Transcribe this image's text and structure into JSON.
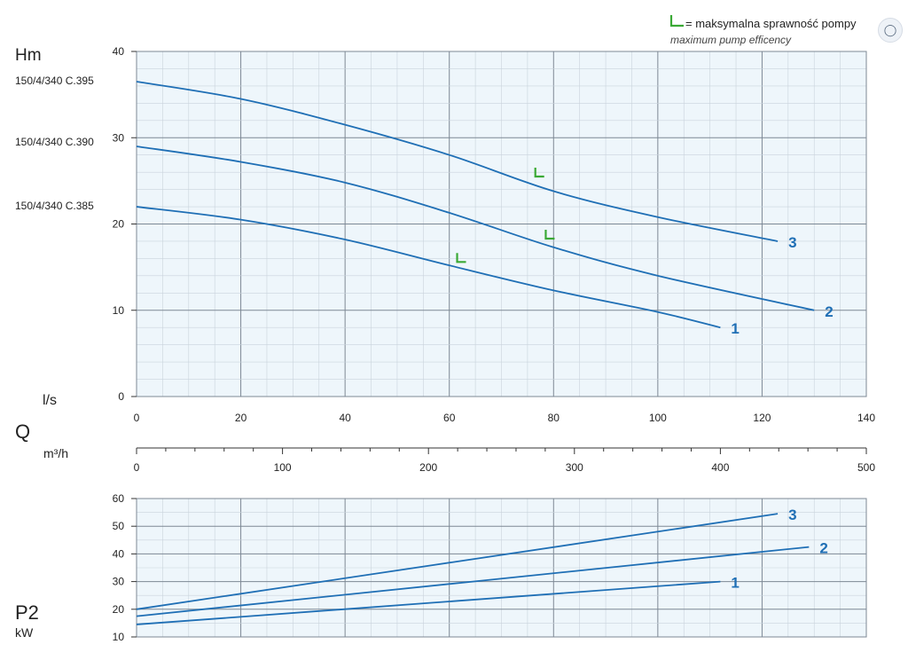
{
  "legend": {
    "symbol": "L",
    "line1": "= maksymalna sprawność pompy",
    "line2": "maximum pump efficency",
    "symbol_color": "#3aa935"
  },
  "action_icon": "scan-icon",
  "colors": {
    "curve": "#1f6fb5",
    "grid_bg": "#eef6fb",
    "grid_minor": "#c9d3dc",
    "grid_major": "#7d8894"
  },
  "chart_data": [
    {
      "type": "line",
      "name": "head",
      "ylabel": "Hm",
      "xlabel": "l/s",
      "xlim": [
        0,
        140
      ],
      "ylim": [
        0,
        40
      ],
      "xticks": [
        0,
        20,
        40,
        60,
        80,
        100,
        120,
        140
      ],
      "yticks": [
        0,
        10,
        20,
        30,
        40
      ],
      "model_labels": [
        "150/4/340 C.395",
        "150/4/340 C.390",
        "150/4/340 C.385"
      ],
      "series": [
        {
          "name": "3",
          "x": [
            0,
            20,
            40,
            60,
            80,
            100,
            123
          ],
          "y": [
            36.5,
            34.5,
            31.5,
            28.0,
            23.8,
            20.8,
            18.0
          ]
        },
        {
          "name": "2",
          "x": [
            0,
            20,
            40,
            60,
            80,
            100,
            130
          ],
          "y": [
            29.0,
            27.2,
            24.8,
            21.3,
            17.3,
            14.0,
            10.0
          ]
        },
        {
          "name": "1",
          "x": [
            0,
            20,
            40,
            60,
            80,
            100,
            112
          ],
          "y": [
            22.0,
            20.5,
            18.2,
            15.2,
            12.3,
            9.8,
            8.0
          ]
        }
      ],
      "efficiency_points": [
        {
          "x": 76.5,
          "y": 25.5
        },
        {
          "x": 78.5,
          "y": 18.3
        },
        {
          "x": 61.5,
          "y": 15.6
        }
      ]
    },
    {
      "type": "axis",
      "name": "flow-m3h",
      "label": "Q",
      "unit": "m³/h",
      "xlim": [
        0,
        500
      ],
      "xticks": [
        0,
        100,
        200,
        300,
        400,
        500
      ]
    },
    {
      "type": "line",
      "name": "power",
      "ylabel": "P2",
      "yunit": "kW",
      "xlim": [
        0,
        140
      ],
      "ylim": [
        10,
        60
      ],
      "yticks": [
        10,
        20,
        30,
        40,
        50,
        60
      ],
      "series": [
        {
          "name": "3",
          "x": [
            0,
            123
          ],
          "y": [
            20.0,
            54.5
          ]
        },
        {
          "name": "2",
          "x": [
            0,
            129
          ],
          "y": [
            17.5,
            42.5
          ]
        },
        {
          "name": "1",
          "x": [
            0,
            112
          ],
          "y": [
            14.5,
            30.0
          ]
        }
      ]
    }
  ]
}
